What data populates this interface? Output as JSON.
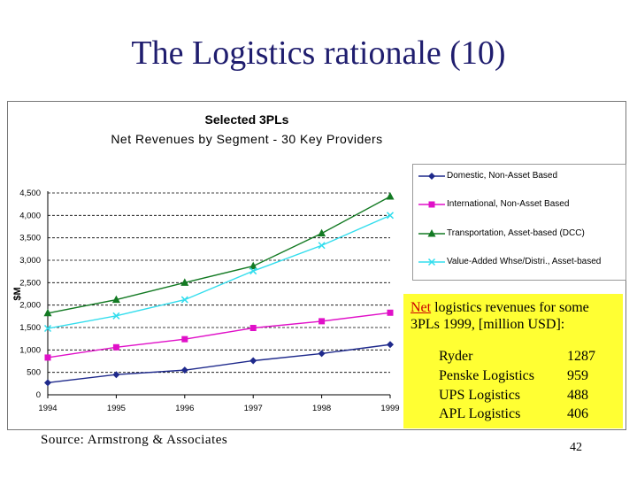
{
  "slide": {
    "title": "The Logistics rationale (10)",
    "source": "Source: Armstrong & Associates",
    "page_number": "42"
  },
  "callout": {
    "heading_prefix": "Net",
    "heading_rest": " logistics revenues for some 3PLs 1999, [million USD]:",
    "rows": [
      {
        "name": "Ryder",
        "value": "1287"
      },
      {
        "name": "Penske Logistics",
        "value": "959"
      },
      {
        "name": "UPS Logistics",
        "value": "488"
      },
      {
        "name": "APL Logistics",
        "value": "406"
      }
    ],
    "background": "#ffff33"
  },
  "chart_data": {
    "type": "line",
    "title": "Selected 3PLs",
    "subtitle": "Net Revenues by Segment - 30 Key Providers",
    "xlabel": "",
    "ylabel": "$M",
    "x": [
      1994,
      1995,
      1996,
      1997,
      1998,
      1999
    ],
    "x_tick_labels": [
      "1994",
      "1995",
      "1996",
      "1997",
      "1998",
      "1999"
    ],
    "ylim": [
      0,
      4500
    ],
    "y_ticks": [
      0,
      500,
      1000,
      1500,
      2000,
      2500,
      3000,
      3500,
      4000,
      4500
    ],
    "y_tick_labels": [
      "0",
      "500",
      "1,000",
      "1,500",
      "2,000",
      "2,500",
      "3,000",
      "3,500",
      "4,000",
      "4,500"
    ],
    "grid": true,
    "legend_position": "right",
    "series": [
      {
        "name": "Domestic, Non-Asset Based",
        "color": "#1f2a8c",
        "marker": "diamond",
        "values": [
          270,
          450,
          550,
          760,
          920,
          1120
        ]
      },
      {
        "name": "International, Non-Asset Based",
        "color": "#e010c8",
        "marker": "square",
        "values": [
          830,
          1060,
          1240,
          1490,
          1640,
          1830
        ]
      },
      {
        "name": "Transportation, Asset-based (DCC)",
        "color": "#137a23",
        "marker": "triangle",
        "values": [
          1820,
          2120,
          2500,
          2870,
          3600,
          4420
        ]
      },
      {
        "name": "Value-Added Whse/Distri., Asset-based",
        "color": "#33dded",
        "marker": "x",
        "values": [
          1480,
          1760,
          2120,
          2760,
          3330,
          4000
        ]
      }
    ]
  }
}
